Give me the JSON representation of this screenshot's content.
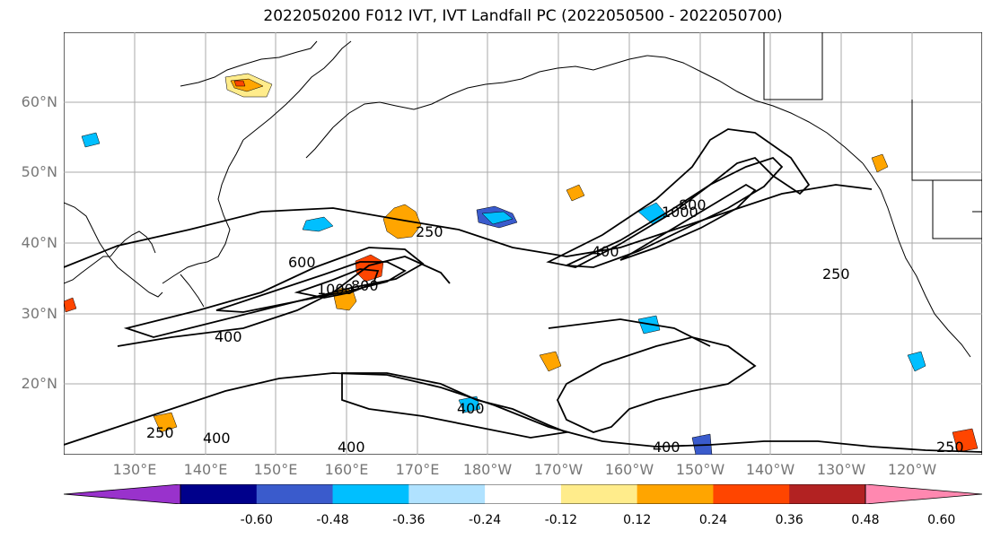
{
  "title": "2022050200 F012 IVT, IVT Landfall PC (2022050500 - 2022050700)",
  "lat_labels": [
    "60°N",
    "50°N",
    "40°N",
    "30°N",
    "20°N"
  ],
  "lon_labels": [
    "130°E",
    "140°E",
    "150°E",
    "160°E",
    "170°E",
    "180°W",
    "170°W",
    "160°W",
    "150°W",
    "140°W",
    "130°W",
    "120°W"
  ],
  "contour_labels": [
    "250",
    "250",
    "250",
    "250",
    "400",
    "400",
    "400",
    "400",
    "400",
    "600",
    "800",
    "800",
    "1000",
    "1000",
    "400"
  ],
  "colorbar": {
    "tick_labels": [
      "-0.60",
      "-0.48",
      "-0.36",
      "-0.24",
      "-0.12",
      "0.12",
      "0.24",
      "0.36",
      "0.48",
      "0.60"
    ],
    "colors": [
      "#9932cc",
      "#00008b",
      "#3a5bcc",
      "#00bfff",
      "#b0e2ff",
      "#ffffff",
      "#ffec8b",
      "#ffa500",
      "#ff4500",
      "#b22222",
      "#ff88b0"
    ]
  },
  "colors": {
    "grid": "#aaaaaa",
    "contour": "#000000",
    "axis_label": "#777777"
  }
}
